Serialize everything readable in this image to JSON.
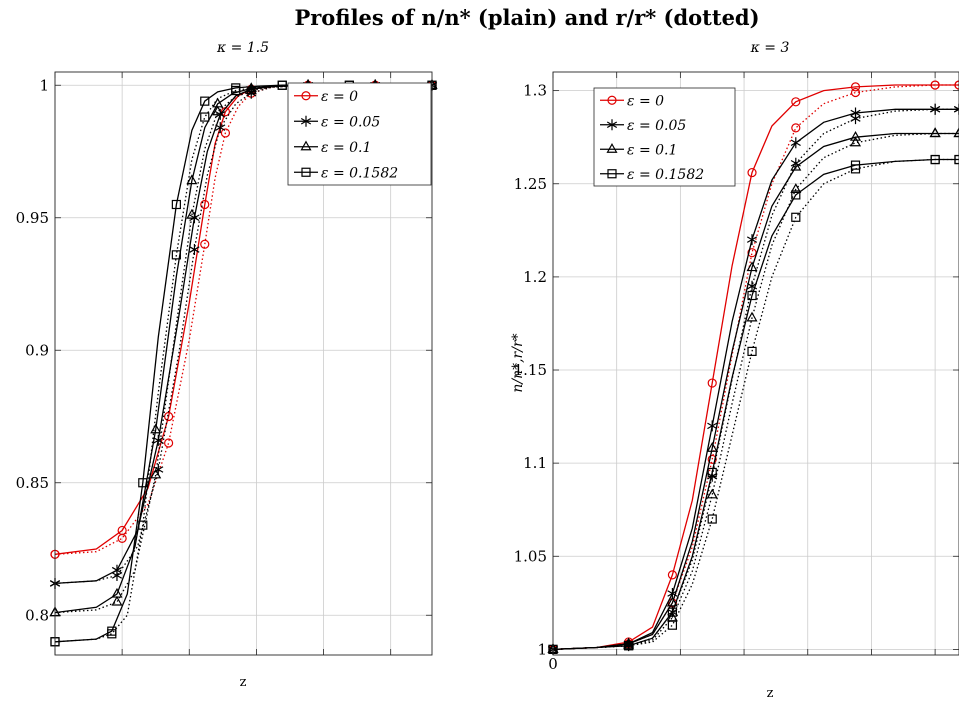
{
  "title": "Profiles of n/n* (plain) and r/r* (dotted)",
  "colors": {
    "eps0": "#e00000",
    "other": "#000000",
    "grid": "#cccccc"
  },
  "chart_data": [
    {
      "type": "line",
      "subtitle": "κ = 1.5",
      "xlabel": "z",
      "ylabel": "",
      "ylim": [
        0.785,
        1.005
      ],
      "yticks": [
        "0.8",
        "0.85",
        "0.9",
        "0.95",
        "1"
      ],
      "xticks": [],
      "grid": true,
      "legend_position": "top-right",
      "series": [
        {
          "name": "ε = 0",
          "marker": "circle",
          "color": "#e00000",
          "plain": {
            "x": [
              0.0,
              0.8,
              1.3,
              1.8,
              2.2,
              2.6,
              2.9,
              3.1,
              3.3,
              3.55,
              3.8,
              4.2,
              4.9,
              5.5,
              6.2,
              7.3
            ],
            "y": [
              0.823,
              0.825,
              0.832,
              0.848,
              0.875,
              0.918,
              0.955,
              0.978,
              0.99,
              0.996,
              0.9985,
              0.9995,
              1.0,
              1.0,
              1.0,
              1.0
            ]
          },
          "dotted": {
            "x": [
              0.0,
              0.8,
              1.3,
              1.8,
              2.2,
              2.6,
              2.9,
              3.1,
              3.3,
              3.55,
              3.8,
              4.2,
              4.9,
              5.5,
              6.2,
              7.3
            ],
            "y": [
              0.823,
              0.824,
              0.829,
              0.842,
              0.865,
              0.904,
              0.94,
              0.965,
              0.982,
              0.992,
              0.997,
              0.9993,
              1.0,
              1.0,
              1.0,
              1.0
            ]
          }
        },
        {
          "name": "ε = 0.05",
          "marker": "star",
          "color": "#000000",
          "plain": {
            "x": [
              0.0,
              0.8,
              1.2,
              1.6,
              2.0,
              2.4,
              2.7,
              2.95,
              3.2,
              3.5,
              3.8,
              4.2,
              4.9,
              5.5,
              6.2,
              7.3
            ],
            "y": [
              0.812,
              0.813,
              0.817,
              0.832,
              0.866,
              0.913,
              0.95,
              0.975,
              0.989,
              0.996,
              0.9985,
              0.9995,
              1.0,
              1.0,
              1.0,
              1.0
            ]
          },
          "dotted": {
            "x": [
              0.0,
              0.8,
              1.2,
              1.6,
              2.0,
              2.4,
              2.7,
              2.95,
              3.2,
              3.5,
              3.8,
              4.2,
              4.9,
              5.5,
              6.2,
              7.3
            ],
            "y": [
              0.812,
              0.813,
              0.815,
              0.826,
              0.855,
              0.899,
              0.938,
              0.966,
              0.984,
              0.993,
              0.997,
              0.9993,
              1.0,
              1.0,
              1.0,
              1.0
            ]
          }
        },
        {
          "name": "ε = 0.1",
          "marker": "triangle",
          "color": "#000000",
          "plain": {
            "x": [
              0.0,
              0.8,
              1.2,
              1.55,
              1.95,
              2.35,
              2.65,
              2.9,
              3.15,
              3.45,
              3.8,
              4.2,
              4.9,
              5.5,
              6.2,
              7.3
            ],
            "y": [
              0.801,
              0.803,
              0.808,
              0.826,
              0.87,
              0.928,
              0.964,
              0.984,
              0.993,
              0.997,
              0.9988,
              0.9996,
              1.0,
              1.0,
              1.0,
              1.0
            ]
          },
          "dotted": {
            "x": [
              0.0,
              0.8,
              1.2,
              1.55,
              1.95,
              2.35,
              2.65,
              2.9,
              3.15,
              3.45,
              3.8,
              4.2,
              4.9,
              5.5,
              6.2,
              7.3
            ],
            "y": [
              0.801,
              0.802,
              0.805,
              0.817,
              0.853,
              0.91,
              0.951,
              0.976,
              0.99,
              0.995,
              0.998,
              0.9993,
              1.0,
              1.0,
              1.0,
              1.0
            ]
          }
        },
        {
          "name": "ε = 0.1582",
          "marker": "square",
          "color": "#000000",
          "plain": {
            "x": [
              0.0,
              0.8,
              1.1,
              1.4,
              1.7,
              2.0,
              2.35,
              2.65,
              2.9,
              3.15,
              3.5,
              3.9,
              4.4,
              5.0,
              5.7,
              7.3
            ],
            "y": [
              0.79,
              0.791,
              0.794,
              0.808,
              0.85,
              0.905,
              0.955,
              0.983,
              0.994,
              0.9975,
              0.999,
              0.9996,
              1.0,
              1.0,
              1.0,
              1.0
            ]
          },
          "dotted": {
            "x": [
              0.0,
              0.8,
              1.1,
              1.4,
              1.7,
              2.0,
              2.35,
              2.65,
              2.9,
              3.15,
              3.5,
              3.9,
              4.4,
              5.0,
              5.7,
              7.3
            ],
            "y": [
              0.79,
              0.791,
              0.793,
              0.8,
              0.834,
              0.884,
              0.936,
              0.972,
              0.988,
              0.995,
              0.998,
              0.9993,
              1.0,
              1.0,
              1.0,
              1.0
            ]
          }
        }
      ]
    },
    {
      "type": "line",
      "subtitle": "κ = 3",
      "xlabel": "z",
      "ylabel": "n/n*,r/r*",
      "ylim": [
        0.997,
        1.31
      ],
      "yticks": [
        "1",
        "1.05",
        "1.1",
        "1.15",
        "1.2",
        "1.25",
        "1.3"
      ],
      "xticks": [
        "0"
      ],
      "grid": true,
      "legend_position": "top-left",
      "series": [
        {
          "name": "ε = 0",
          "marker": "circle",
          "color": "#e00000",
          "plain": {
            "x": [
              0.0,
              0.55,
              0.95,
              1.25,
              1.5,
              1.75,
              2.0,
              2.25,
              2.5,
              2.75,
              3.05,
              3.4,
              3.8,
              4.3,
              4.8,
              5.1
            ],
            "y": [
              1.0,
              1.001,
              1.004,
              1.012,
              1.04,
              1.08,
              1.143,
              1.206,
              1.256,
              1.281,
              1.294,
              1.3,
              1.302,
              1.303,
              1.303,
              1.303
            ]
          },
          "dotted": {
            "x": [
              0.0,
              0.55,
              0.95,
              1.25,
              1.5,
              1.75,
              2.0,
              2.25,
              2.5,
              2.75,
              3.05,
              3.4,
              3.8,
              4.3,
              4.8,
              5.1
            ],
            "y": [
              1.0,
              1.001,
              1.003,
              1.008,
              1.025,
              1.055,
              1.102,
              1.158,
              1.213,
              1.25,
              1.28,
              1.293,
              1.299,
              1.302,
              1.303,
              1.303
            ]
          }
        },
        {
          "name": "ε = 0.05",
          "marker": "star",
          "color": "#000000",
          "plain": {
            "x": [
              0.0,
              0.55,
              0.95,
              1.25,
              1.5,
              1.75,
              2.0,
              2.25,
              2.5,
              2.75,
              3.05,
              3.4,
              3.8,
              4.3,
              4.8,
              5.1
            ],
            "y": [
              1.0,
              1.001,
              1.003,
              1.009,
              1.03,
              1.065,
              1.12,
              1.176,
              1.22,
              1.252,
              1.272,
              1.283,
              1.288,
              1.29,
              1.29,
              1.29
            ]
          },
          "dotted": {
            "x": [
              0.0,
              0.55,
              0.95,
              1.25,
              1.5,
              1.75,
              2.0,
              2.25,
              2.5,
              2.75,
              3.05,
              3.4,
              3.8,
              4.3,
              4.8,
              5.1
            ],
            "y": [
              1.0,
              1.001,
              1.002,
              1.006,
              1.02,
              1.048,
              1.093,
              1.145,
              1.195,
              1.233,
              1.261,
              1.277,
              1.285,
              1.289,
              1.29,
              1.29
            ]
          }
        },
        {
          "name": "ε = 0.1",
          "marker": "triangle",
          "color": "#000000",
          "plain": {
            "x": [
              0.0,
              0.55,
              0.95,
              1.25,
              1.5,
              1.75,
              2.0,
              2.25,
              2.5,
              2.75,
              3.05,
              3.4,
              3.8,
              4.3,
              4.8,
              5.1
            ],
            "y": [
              1.0,
              1.001,
              1.003,
              1.008,
              1.025,
              1.058,
              1.108,
              1.16,
              1.205,
              1.238,
              1.259,
              1.27,
              1.275,
              1.277,
              1.277,
              1.277
            ]
          },
          "dotted": {
            "x": [
              0.0,
              0.55,
              0.95,
              1.25,
              1.5,
              1.75,
              2.0,
              2.25,
              2.5,
              2.75,
              3.05,
              3.4,
              3.8,
              4.3,
              4.8,
              5.1
            ],
            "y": [
              1.0,
              1.001,
              1.002,
              1.005,
              1.017,
              1.042,
              1.083,
              1.132,
              1.178,
              1.217,
              1.247,
              1.264,
              1.272,
              1.276,
              1.277,
              1.277
            ]
          }
        },
        {
          "name": "ε = 0.1582",
          "marker": "square",
          "color": "#000000",
          "plain": {
            "x": [
              0.0,
              0.55,
              0.95,
              1.25,
              1.5,
              1.75,
              2.0,
              2.25,
              2.5,
              2.75,
              3.05,
              3.4,
              3.8,
              4.3,
              4.8,
              5.1
            ],
            "y": [
              1.0,
              1.001,
              1.002,
              1.006,
              1.02,
              1.05,
              1.095,
              1.146,
              1.19,
              1.222,
              1.244,
              1.255,
              1.26,
              1.262,
              1.263,
              1.263
            ]
          },
          "dotted": {
            "x": [
              0.0,
              0.55,
              0.95,
              1.25,
              1.5,
              1.75,
              2.0,
              2.25,
              2.5,
              2.75,
              3.05,
              3.4,
              3.8,
              4.3,
              4.8,
              5.1
            ],
            "y": [
              1.0,
              1.001,
              1.002,
              1.004,
              1.013,
              1.035,
              1.07,
              1.115,
              1.16,
              1.2,
              1.232,
              1.25,
              1.258,
              1.262,
              1.263,
              1.263
            ]
          }
        }
      ]
    }
  ]
}
